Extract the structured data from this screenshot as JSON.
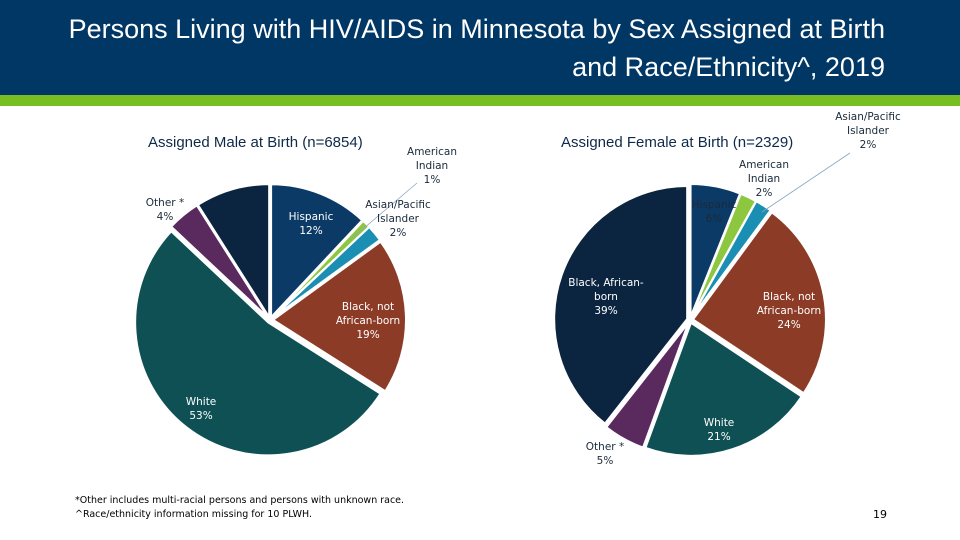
{
  "header": {
    "title": "Persons Living with HIV/AIDS in Minnesota by Sex Assigned at Birth and Race/Ethnicity^, 2019"
  },
  "chart_data": [
    {
      "type": "pie",
      "title": "Assigned Male at Birth (n=6854)",
      "categories": [
        "Hispanic",
        "American Indian",
        "Asian/Pacific Islander",
        "Black, not African-born",
        "White",
        "Other *",
        "Black, African-born"
      ],
      "values": [
        12,
        1,
        2,
        19,
        53,
        4,
        9
      ],
      "labels": [
        "Hispanic\n12%",
        "American\nIndian\n1%",
        "Asian/Pacific\nIslander\n2%",
        "Black, not\nAfrican-born\n19%",
        "White\n53%",
        "Other *\n4%",
        ""
      ]
    },
    {
      "type": "pie",
      "title": "Assigned Female at Birth (n=2329)",
      "categories": [
        "Hispanic",
        "American Indian",
        "Asian/Pacific Islander",
        "Black, not African-born",
        "White",
        "Other *",
        "Black, African-born"
      ],
      "values": [
        6,
        2,
        2,
        24,
        21,
        5,
        39
      ],
      "labels": [
        "Hispanic\n6%",
        "American\nIndian\n2%",
        "Asian/Pacific\nIslander\n2%",
        "Black, not\nAfrican-born\n24%",
        "White\n21%",
        "Other *\n5%",
        "Black, African-\nborn\n39%"
      ]
    }
  ],
  "colors": [
    "#0c3a66",
    "#8dc63f",
    "#1b8fb3",
    "#8c3b26",
    "#0f5055",
    "#5a2a5e",
    "#0b2440"
  ],
  "footnotes": [
    "*Other includes multi-racial persons and persons with unknown race.",
    "^Race/ethnicity information missing for 10 PLWH."
  ],
  "page_number": "19"
}
